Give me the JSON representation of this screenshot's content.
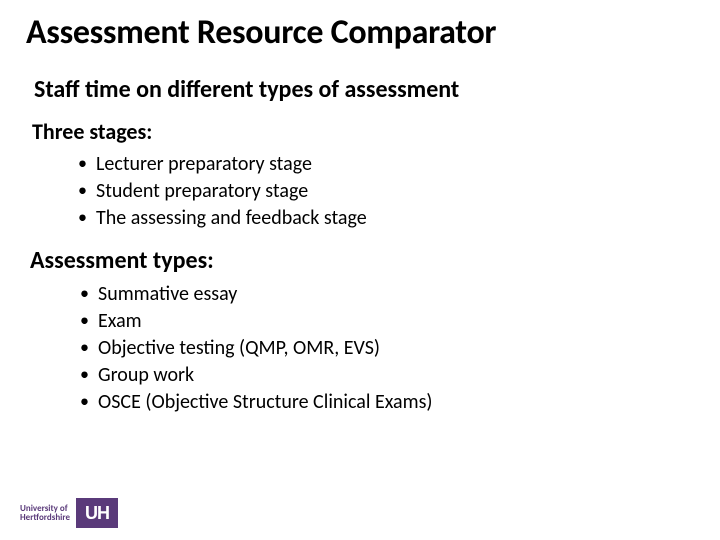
{
  "colors": {
    "background": "#ffffff",
    "text": "#000000",
    "logo_purple": "#5a3a7a",
    "logo_text": "#ffffff"
  },
  "typography": {
    "family": "Calibri",
    "title_size_pt": 34,
    "title_weight": 700,
    "subtitle_size_pt": 24,
    "subtitle_weight": 700,
    "section_size_pt": 22,
    "section_weight": 700,
    "bullet_size_pt": 20,
    "bullet_weight": 400
  },
  "title": "Assessment Resource Comparator",
  "subtitle": "Staff time on different types of assessment",
  "stages": {
    "heading": "Three stages:",
    "items": [
      "Lecturer preparatory stage",
      "Student preparatory stage",
      "The assessing and feedback stage"
    ]
  },
  "types": {
    "heading": "Assessment types:",
    "items": [
      "Summative essay",
      "Exam",
      "Objective testing (QMP, OMR, EVS)",
      "Group work",
      "OSCE (Objective Structure Clinical Exams)"
    ]
  },
  "logo": {
    "line1": "University of",
    "line2": "Hertfordshire",
    "mark": "UH"
  }
}
